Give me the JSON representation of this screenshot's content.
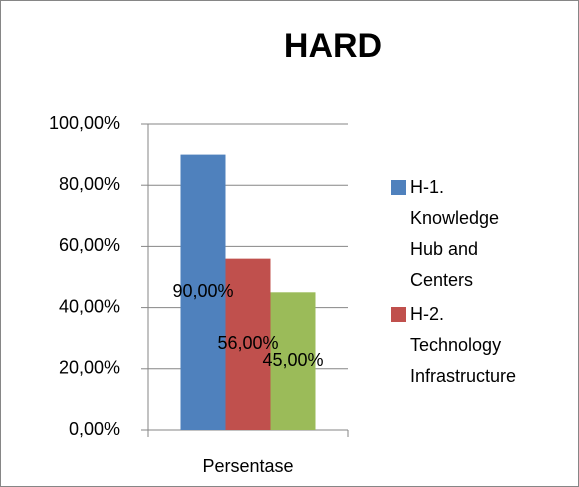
{
  "chart_data": {
    "type": "bar",
    "title": "HARD",
    "categories": [
      "Persentase"
    ],
    "series": [
      {
        "name": "H-1. Knowledge Hub and Centers",
        "color": "#4f81bd",
        "values": [
          90
        ],
        "value_labels": [
          "90,00%"
        ]
      },
      {
        "name": "H-2. Technology Infrastructure",
        "color": "#c0504d",
        "values": [
          56
        ],
        "value_labels": [
          "56,00%"
        ]
      },
      {
        "color": "#9bbb59",
        "values": [
          45
        ],
        "value_labels": [
          "45,00%"
        ]
      }
    ],
    "ylim": [
      0,
      100
    ],
    "yticks": [
      {
        "value": 0,
        "label": "0,00%"
      },
      {
        "value": 20,
        "label": "20,00%"
      },
      {
        "value": 40,
        "label": "40,00%"
      },
      {
        "value": 60,
        "label": "60,00%"
      },
      {
        "value": 80,
        "label": "80,00%"
      },
      {
        "value": 100,
        "label": "100,00%"
      }
    ],
    "grid": true,
    "legend": "right"
  }
}
